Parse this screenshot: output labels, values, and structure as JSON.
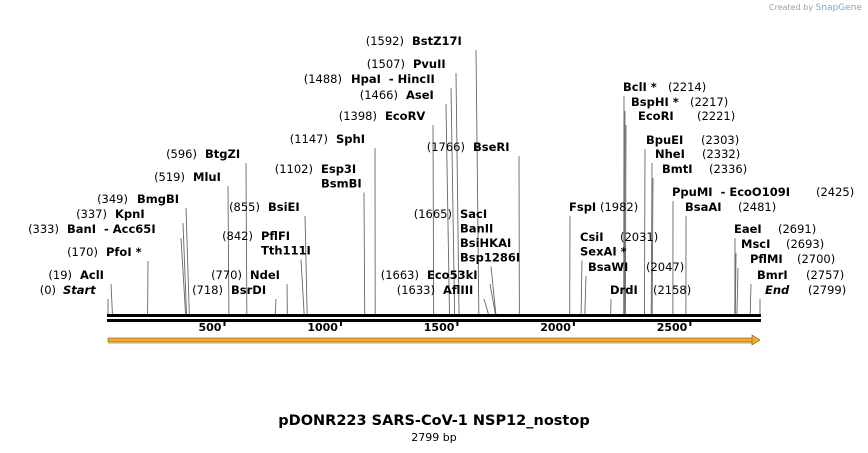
{
  "credit": {
    "text": "Created by",
    "brand": "SnapGene"
  },
  "title": "pDONR223 SARS-CoV-1 NSP12_nostop",
  "subtitle": "2799 bp",
  "sequence_length": 2799,
  "scale_ticks": [
    "500",
    "1000",
    "1500",
    "2000",
    "2500"
  ],
  "colors": {
    "backbone": "#000000",
    "feature_arrow": "#f3a83b",
    "feature_outline": "#7a5a1a",
    "leader": "#666666"
  },
  "sites": [
    {
      "pos": "(0)",
      "name": "Start",
      "italic": true,
      "pos_num": 0,
      "line_x": 108
    },
    {
      "pos": "(19)",
      "name": "AclI",
      "pos_num": 19,
      "line_x": 111
    },
    {
      "pos": "(170)",
      "name": "PfoI *",
      "pos_num": 170,
      "line_x": 148
    },
    {
      "pos": "(333)",
      "name": "BanI  - Acc65I",
      "pos_num": 333,
      "line_x": 181
    },
    {
      "pos": "(337)",
      "name": "KpnI",
      "pos_num": 337,
      "line_x": 183
    },
    {
      "pos": "(349)",
      "name": "BmgBI",
      "pos_num": 349,
      "line_x": 186
    },
    {
      "pos": "(519)",
      "name": "MluI",
      "pos_num": 519,
      "line_x": 228
    },
    {
      "pos": "(596)",
      "name": "BtgZI",
      "pos_num": 596,
      "line_x": 246
    },
    {
      "pos": "(718)",
      "name": "BsrDI",
      "pos_num": 718,
      "line_x": 276
    },
    {
      "pos": "(770)",
      "name": "NdeI",
      "pos_num": 770,
      "line_x": 287
    },
    {
      "pos": "(842)",
      "name": "PflFI\nTth111I",
      "pos_num": 842,
      "line_x": 301
    },
    {
      "pos": "(855)",
      "name": "BsiEI",
      "pos_num": 855,
      "line_x": 305
    },
    {
      "pos": "(1102)",
      "name": "Esp3I\nBsmBI",
      "pos_num": 1102,
      "line_x": 364
    },
    {
      "pos": "(1147)",
      "name": "SphI",
      "pos_num": 1147,
      "line_x": 375
    },
    {
      "pos": "(1398)",
      "name": "EcoRV",
      "pos_num": 1398,
      "line_x": 433
    },
    {
      "pos": "(1466)",
      "name": "AseI",
      "pos_num": 1466,
      "line_x": 446
    },
    {
      "pos": "(1488)",
      "name": "HpaI  - HincII",
      "pos_num": 1488,
      "line_x": 451
    },
    {
      "pos": "(1507)",
      "name": "PvuII",
      "pos_num": 1507,
      "line_x": 456
    },
    {
      "pos": "(1592)",
      "name": "BstZ17I",
      "pos_num": 1592,
      "line_x": 476
    },
    {
      "pos": "(1633)",
      "name": "AflIII",
      "pos_num": 1633,
      "line_x": 484
    },
    {
      "pos": "(1663)",
      "name": "Eco53kI",
      "pos_num": 1663,
      "line_x": 490
    },
    {
      "pos": "(1665)",
      "name": "SacI\nBanII\nBsiHKAI\nBsp1286I",
      "pos_num": 1665,
      "line_x": 491
    },
    {
      "pos": "(1766)",
      "name": "BseRI",
      "pos_num": 1766,
      "line_x": 519
    },
    {
      "pos": "(1982)",
      "name": "FspI",
      "pos_num": 1982,
      "line_x": 570
    },
    {
      "pos": "(2031)",
      "name": "CsiI\nSexAI *",
      "pos_num": 2031,
      "line_x": 582
    },
    {
      "pos": "(2047)",
      "name": "BsaWI",
      "pos_num": 2047,
      "line_x": 586
    },
    {
      "pos": "(2158)",
      "name": "DrdI",
      "pos_num": 2158,
      "line_x": 611
    },
    {
      "pos": "(2214)",
      "name": "BclI *",
      "pos_num": 2214,
      "line_x": 624
    },
    {
      "pos": "(2217)",
      "name": "BspHI *",
      "pos_num": 2217,
      "line_x": 625
    },
    {
      "pos": "(2221)",
      "name": "EcoRI",
      "pos_num": 2221,
      "line_x": 626
    },
    {
      "pos": "(2303)",
      "name": "BpuEI",
      "pos_num": 2303,
      "line_x": 645
    },
    {
      "pos": "(2332)",
      "name": "NheI",
      "pos_num": 2332,
      "line_x": 652
    },
    {
      "pos": "(2336)",
      "name": "BmtI",
      "pos_num": 2336,
      "line_x": 653
    },
    {
      "pos": "(2425)",
      "name": "PpuMI  - EcoO109I",
      "pos_num": 2425,
      "line_x": 673
    },
    {
      "pos": "(2481)",
      "name": "BsaAI",
      "pos_num": 2481,
      "line_x": 686
    },
    {
      "pos": "(2691)",
      "name": "EaeI",
      "pos_num": 2691,
      "line_x": 735
    },
    {
      "pos": "(2693)",
      "name": "MscI",
      "pos_num": 2693,
      "line_x": 736
    },
    {
      "pos": "(2700)",
      "name": "PflMI",
      "pos_num": 2700,
      "line_x": 738
    },
    {
      "pos": "(2757)",
      "name": "BmrI",
      "pos_num": 2757,
      "line_x": 751
    },
    {
      "pos": "(2799)",
      "name": "End",
      "italic": true,
      "pos_num": 2799,
      "line_x": 760
    }
  ]
}
